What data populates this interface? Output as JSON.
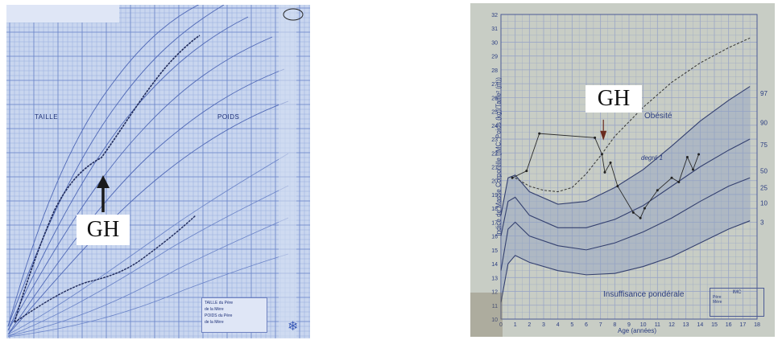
{
  "left_chart": {
    "taille_label": "TAILLE",
    "poids_label": "POIDS",
    "legend_lines": [
      "TAILLE du Père",
      "de la Mère",
      "POIDS du Père",
      "de la Mère"
    ]
  },
  "right_chart": {
    "y_axis_label": "Indice de Masse Corporelle (IMC, Poids (kg)/Taille² (m))",
    "x_axis_label": "Age (années)",
    "obesity_label": "Obésité",
    "degree_label": "degré 1",
    "underweight_label": "Insuffisance pondérale",
    "legend_title": "IMC",
    "legend_lines": [
      "Père",
      "Mère"
    ],
    "y_ticks": [
      "32",
      "31",
      "30",
      "29",
      "28",
      "27",
      "26",
      "25",
      "24",
      "23",
      "22",
      "21",
      "20",
      "19",
      "18",
      "17",
      "16",
      "15",
      "14",
      "13",
      "12",
      "11",
      "10"
    ],
    "x_ticks": [
      "0",
      "1",
      "2",
      "3",
      "4",
      "5",
      "6",
      "7",
      "8",
      "9",
      "10",
      "11",
      "12",
      "13",
      "14",
      "15",
      "16",
      "17",
      "18"
    ],
    "percentiles": [
      "97",
      "90",
      "75",
      "50",
      "25",
      "10",
      "3"
    ]
  },
  "annotations": {
    "gh_left": "GH",
    "gh_right": "GH"
  },
  "colors": {
    "left_bg": "#c9d6ef",
    "left_ink": "#1c2f77",
    "right_bg": "#c8cdc5",
    "right_ink": "#2a3c80"
  }
}
